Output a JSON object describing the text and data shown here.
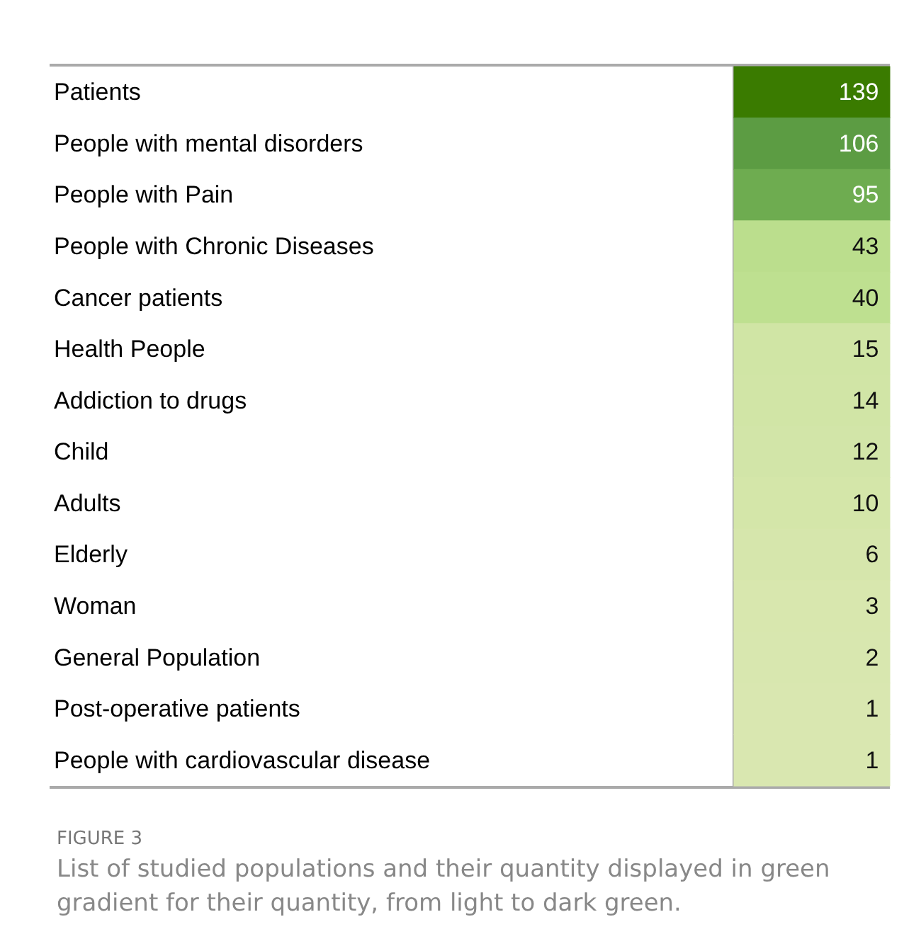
{
  "chart_data": {
    "type": "heatmap",
    "title": "FIGURE 3",
    "subtitle": "List of studied populations and their quantity displayed in green gradient for their quantity, from light to dark green.",
    "categories": [
      null
    ],
    "y_categories": [
      "Patients",
      "People with mental disorders",
      "People with Pain",
      "People with Chronic Diseases",
      "Cancer patients",
      "Health People",
      "Addiction to drugs",
      "Child",
      "Adults",
      "Elderly",
      "Woman",
      "General Population",
      "Post-operative patients",
      "People with cardiovascular disease"
    ],
    "cells": [
      [
        139
      ],
      [
        106
      ],
      [
        95
      ],
      [
        43
      ],
      [
        40
      ],
      [
        15
      ],
      [
        14
      ],
      [
        12
      ],
      [
        10
      ],
      [
        6
      ],
      [
        3
      ],
      [
        2
      ],
      [
        1
      ],
      [
        1
      ]
    ],
    "data_labels": true
  }
}
